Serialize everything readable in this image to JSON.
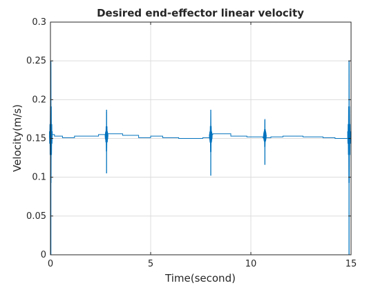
{
  "chart_data": {
    "type": "line",
    "title": "Desired end-effector linear velocity",
    "xlabel": "Time(second)",
    "ylabel": "Velocity(m/s)",
    "xlim": [
      0,
      15
    ],
    "ylim": [
      0,
      0.3
    ],
    "xticks": [
      0,
      5,
      10,
      15
    ],
    "xtick_labels": [
      "0",
      "5",
      "10",
      "15"
    ],
    "yticks": [
      0,
      0.05,
      0.1,
      0.15,
      0.2,
      0.25,
      0.3
    ],
    "ytick_labels": [
      "0",
      "0.05",
      "0.1",
      "0.15",
      "0.2",
      "0.25",
      "0.3"
    ],
    "grid": true,
    "line_color": "#0072bd",
    "axis_color": "#262626",
    "grid_color": "#dcdcdc",
    "series": [
      {
        "baseline": {
          "x": [
            0,
            0.2,
            0.2,
            0.6,
            0.6,
            1.2,
            1.2,
            2.4,
            2.4,
            2.8,
            2.8,
            3.6,
            3.6,
            4.4,
            4.4,
            5.0,
            5.0,
            5.6,
            5.6,
            6.4,
            6.4,
            7.6,
            7.6,
            8.0,
            8.0,
            8.1,
            8.1,
            9.0,
            9.0,
            9.8,
            9.8,
            10.6,
            10.6,
            11.0,
            11.0,
            11.6,
            11.6,
            12.6,
            12.6,
            13.6,
            13.6,
            14.2,
            14.2,
            14.9
          ],
          "y": [
            0.155,
            0.155,
            0.153,
            0.153,
            0.151,
            0.151,
            0.153,
            0.153,
            0.155,
            0.155,
            0.156,
            0.156,
            0.154,
            0.154,
            0.151,
            0.151,
            0.153,
            0.153,
            0.151,
            0.151,
            0.15,
            0.15,
            0.151,
            0.151,
            0.155,
            0.155,
            0.156,
            0.156,
            0.153,
            0.153,
            0.152,
            0.152,
            0.151,
            0.151,
            0.152,
            0.152,
            0.153,
            0.153,
            0.152,
            0.152,
            0.151,
            0.151,
            0.15,
            0.15
          ]
        },
        "spikes": [
          {
            "x": 0.02,
            "min": 0.0,
            "max": 0.25
          },
          {
            "x": 2.8,
            "min": 0.105,
            "max": 0.187
          },
          {
            "x": 8.0,
            "min": 0.102,
            "max": 0.187
          },
          {
            "x": 10.7,
            "min": 0.116,
            "max": 0.174
          },
          {
            "x": 14.9,
            "min": 0.0,
            "max": 0.25
          }
        ]
      }
    ]
  }
}
